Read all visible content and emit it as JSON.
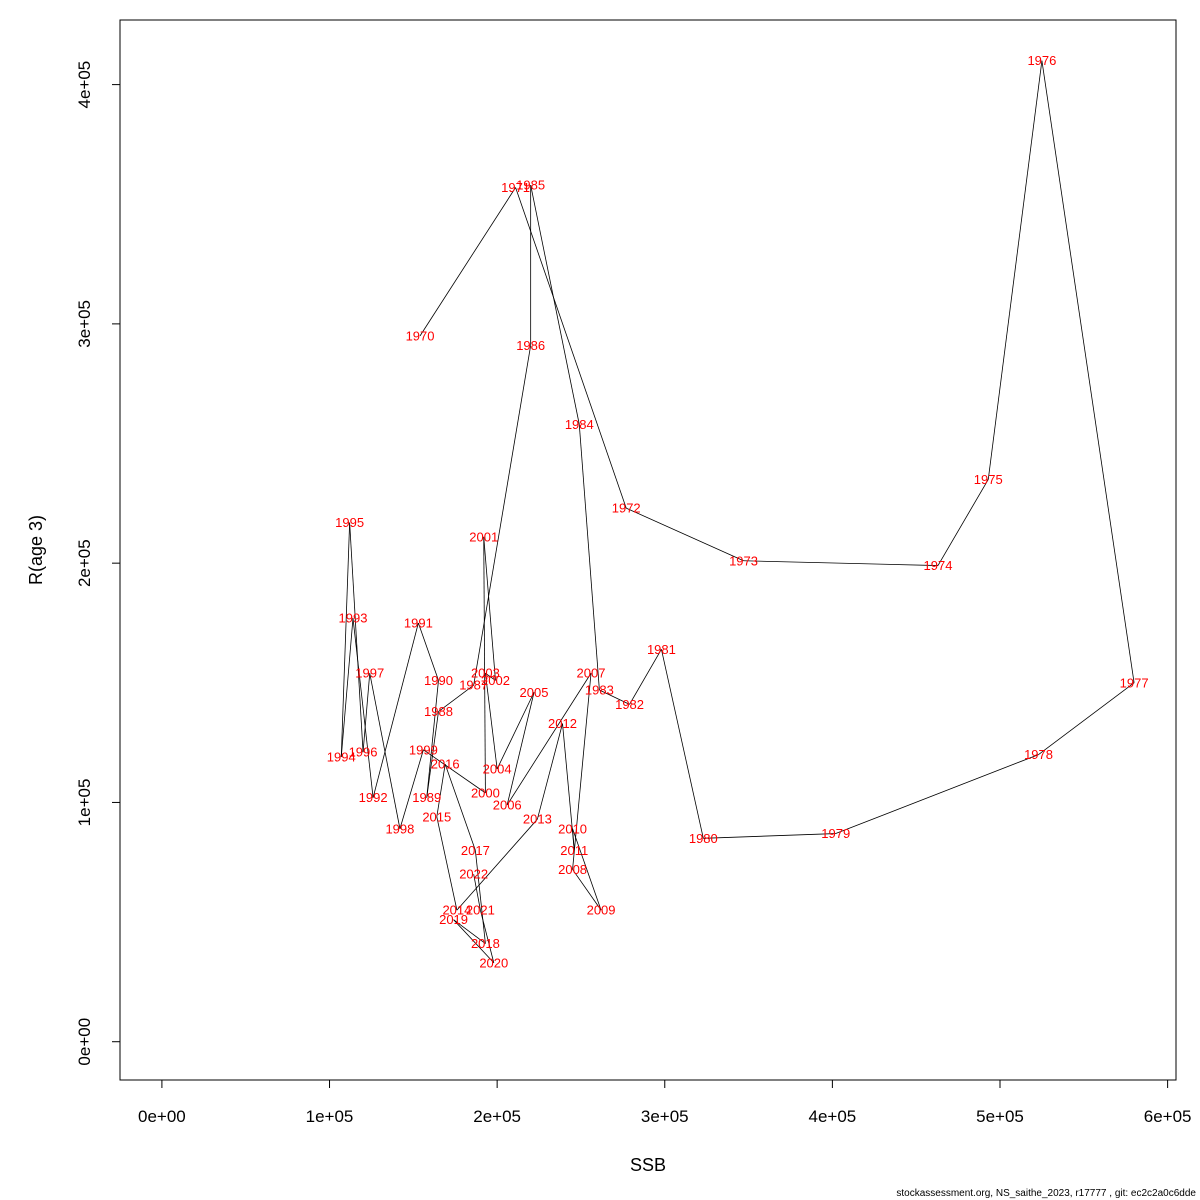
{
  "chart_data": {
    "type": "line",
    "xlabel": "SSB",
    "ylabel": "R(age 3)",
    "xlim": [
      -25000,
      605000
    ],
    "ylim": [
      -16000,
      427000
    ],
    "x_ticks": [
      0,
      100000,
      200000,
      300000,
      400000,
      500000,
      600000
    ],
    "x_tick_labels": [
      "0e+00",
      "1e+05",
      "2e+05",
      "3e+05",
      "4e+05",
      "5e+05",
      "6e+05"
    ],
    "y_ticks": [
      0,
      100000,
      200000,
      300000,
      400000
    ],
    "y_tick_labels": [
      "0e+00",
      "1e+05",
      "2e+05",
      "3e+05",
      "4e+05"
    ],
    "grid": false,
    "series_color": "#000000",
    "label_color": "#ff0000",
    "points": [
      {
        "year": "1970",
        "x": 154000,
        "y": 295000
      },
      {
        "year": "1971",
        "x": 211000,
        "y": 357000
      },
      {
        "year": "1972",
        "x": 277000,
        "y": 223000
      },
      {
        "year": "1973",
        "x": 347000,
        "y": 201000
      },
      {
        "year": "1974",
        "x": 463000,
        "y": 199000
      },
      {
        "year": "1975",
        "x": 493000,
        "y": 235000
      },
      {
        "year": "1976",
        "x": 525000,
        "y": 410000
      },
      {
        "year": "1977",
        "x": 580000,
        "y": 150000
      },
      {
        "year": "1978",
        "x": 523000,
        "y": 120000
      },
      {
        "year": "1979",
        "x": 402000,
        "y": 87000
      },
      {
        "year": "1980",
        "x": 323000,
        "y": 85000
      },
      {
        "year": "1981",
        "x": 298000,
        "y": 164000
      },
      {
        "year": "1982",
        "x": 279000,
        "y": 141000
      },
      {
        "year": "1983",
        "x": 261000,
        "y": 147000
      },
      {
        "year": "1984",
        "x": 249000,
        "y": 258000
      },
      {
        "year": "1985",
        "x": 220000,
        "y": 358000
      },
      {
        "year": "1986",
        "x": 220000,
        "y": 291000
      },
      {
        "year": "1987",
        "x": 186000,
        "y": 149000
      },
      {
        "year": "1988",
        "x": 165000,
        "y": 138000
      },
      {
        "year": "1989",
        "x": 158000,
        "y": 102000
      },
      {
        "year": "1990",
        "x": 165000,
        "y": 151000
      },
      {
        "year": "1991",
        "x": 153000,
        "y": 175000
      },
      {
        "year": "1992",
        "x": 126000,
        "y": 102000
      },
      {
        "year": "1993",
        "x": 114000,
        "y": 177000
      },
      {
        "year": "1994",
        "x": 107000,
        "y": 119000
      },
      {
        "year": "1995",
        "x": 112000,
        "y": 217000
      },
      {
        "year": "1996",
        "x": 120000,
        "y": 121000
      },
      {
        "year": "1997",
        "x": 124000,
        "y": 154000
      },
      {
        "year": "1998",
        "x": 142000,
        "y": 89000
      },
      {
        "year": "1999",
        "x": 156000,
        "y": 122000
      },
      {
        "year": "2000",
        "x": 193000,
        "y": 104000
      },
      {
        "year": "2001",
        "x": 192000,
        "y": 211000
      },
      {
        "year": "2002",
        "x": 199000,
        "y": 151000
      },
      {
        "year": "2003",
        "x": 193000,
        "y": 154000
      },
      {
        "year": "2004",
        "x": 200000,
        "y": 114000
      },
      {
        "year": "2005",
        "x": 222000,
        "y": 146000
      },
      {
        "year": "2006",
        "x": 206000,
        "y": 99000
      },
      {
        "year": "2007",
        "x": 256000,
        "y": 154000
      },
      {
        "year": "2008",
        "x": 245000,
        "y": 72000
      },
      {
        "year": "2009",
        "x": 262000,
        "y": 55000
      },
      {
        "year": "2010",
        "x": 245000,
        "y": 89000
      },
      {
        "year": "2011",
        "x": 246000,
        "y": 80000
      },
      {
        "year": "2012",
        "x": 239000,
        "y": 133000
      },
      {
        "year": "2013",
        "x": 224000,
        "y": 93000
      },
      {
        "year": "2014",
        "x": 176000,
        "y": 55000
      },
      {
        "year": "2015",
        "x": 164000,
        "y": 94000
      },
      {
        "year": "2016",
        "x": 169000,
        "y": 116000
      },
      {
        "year": "2017",
        "x": 187000,
        "y": 80000
      },
      {
        "year": "2018",
        "x": 193000,
        "y": 41000
      },
      {
        "year": "2019",
        "x": 174000,
        "y": 51000
      },
      {
        "year": "2020",
        "x": 198000,
        "y": 33000
      },
      {
        "year": "2021",
        "x": 190000,
        "y": 55000
      },
      {
        "year": "2022",
        "x": 186000,
        "y": 70000
      }
    ]
  },
  "footer": "stockassessment.org, NS_saithe_2023, r17777 , git: ec2c2a0c6dde"
}
